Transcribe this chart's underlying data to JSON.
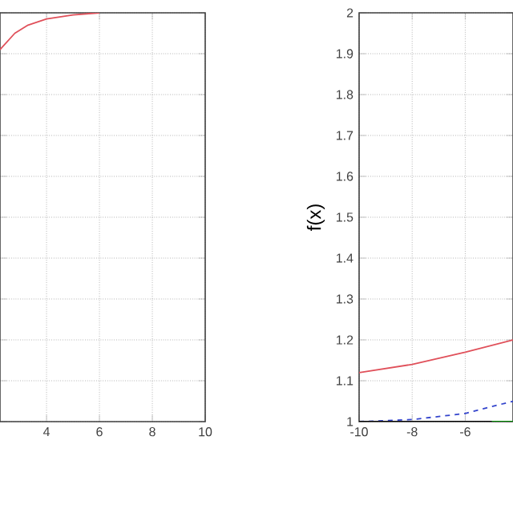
{
  "chart_data": [
    {
      "type": "line",
      "xlim": [
        2.24,
        10
      ],
      "xticks": [
        4,
        6,
        8,
        10
      ],
      "ylim": [
        1,
        2
      ],
      "yticks": [
        {
          "value": 1,
          "label": null
        },
        {
          "value": 1.1,
          "label": null
        },
        {
          "value": 1.2,
          "label": null
        },
        {
          "value": 1.3,
          "label": null
        },
        {
          "value": 1.4,
          "label": null
        },
        {
          "value": 1.5,
          "label": null
        },
        {
          "value": 1.6,
          "label": null
        },
        {
          "value": 1.7,
          "label": null
        },
        {
          "value": 1.8,
          "label": null
        },
        {
          "value": 1.9,
          "label": null
        },
        {
          "value": 2,
          "label": null
        }
      ],
      "tick_labels": "x",
      "grid": true,
      "series": [
        {
          "color": "#e0505a",
          "x": [
            2.24,
            2.8,
            3.3,
            4,
            5,
            6
          ],
          "values": [
            1.91,
            1.95,
            1.97,
            1.985,
            1.995,
            2.0
          ]
        }
      ]
    },
    {
      "type": "line",
      "ylabel": "f(x)",
      "xlim": [
        -10,
        -4.2
      ],
      "xticks": [
        -10,
        -8,
        -6
      ],
      "ylim": [
        1,
        2
      ],
      "yticks": [
        1,
        1.1,
        1.2,
        1.3,
        1.4,
        1.5,
        1.6,
        1.7,
        1.8,
        1.9,
        2
      ],
      "grid": true,
      "series": [
        {
          "color": "#e0505a",
          "x": [
            -10,
            -8,
            -6,
            -4.2
          ],
          "values": [
            1.12,
            1.14,
            1.17,
            1.2
          ]
        },
        {
          "color": "#3344cc",
          "line_style": "dashed",
          "x": [
            -10,
            -8,
            -6,
            -4.2
          ],
          "values": [
            1.0,
            1.005,
            1.02,
            1.05
          ]
        },
        {
          "color": "#000000",
          "x": [
            -10,
            -4.2
          ],
          "values": [
            1.0,
            1.0
          ]
        },
        {
          "color": "#00a000",
          "x": [
            -5,
            -4.2
          ],
          "values": [
            1.0,
            1.0
          ]
        }
      ]
    }
  ]
}
